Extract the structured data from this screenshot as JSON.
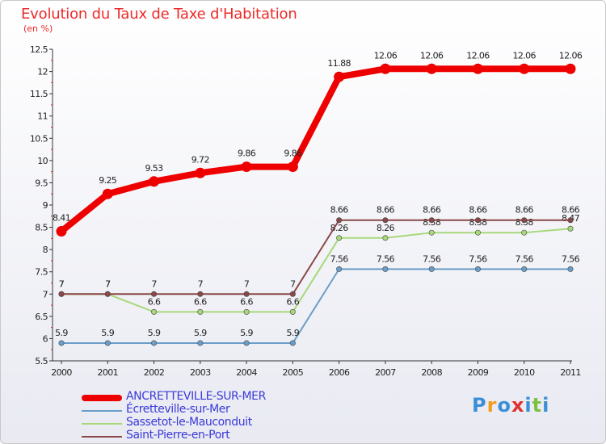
{
  "title": "Evolution du Taux de Taxe d'Habitation",
  "unit": "(en %)",
  "logo": {
    "text": "Proxiti",
    "letters": [
      "P",
      "r",
      "o",
      "x",
      "i",
      "t",
      "i"
    ],
    "colors": [
      "#3b8fd6",
      "#f29b1f",
      "#3b8fd6",
      "#e03030",
      "#3b8fd6",
      "#7cc242",
      "#3b8fd6"
    ]
  },
  "chart_data": {
    "type": "line",
    "title": "Evolution du Taux de Taxe d'Habitation",
    "ylabel": "(en %)",
    "xlabel": "",
    "ylim": [
      5.5,
      12.5
    ],
    "ytick_labels": [
      "5.5",
      "6",
      "6.5",
      "7",
      "7.5",
      "8",
      "8.5",
      "9",
      "9.5",
      "10",
      "10.5",
      "11",
      "11.5",
      "12",
      "12.5"
    ],
    "ytick_values": [
      5.5,
      6,
      6.5,
      7,
      7.5,
      8,
      8.5,
      9,
      9.5,
      10,
      10.5,
      11,
      11.5,
      12,
      12.5
    ],
    "categories": [
      "2000",
      "2001",
      "2002",
      "2003",
      "2004",
      "2005",
      "2006",
      "2007",
      "2008",
      "2009",
      "2010",
      "2011"
    ],
    "series": [
      {
        "name": "ANCRETTEVILLE-SUR-MER",
        "color": "#ee0000",
        "thick": true,
        "values": [
          8.41,
          9.25,
          9.53,
          9.72,
          9.86,
          9.86,
          11.88,
          12.06,
          12.06,
          12.06,
          12.06,
          12.06
        ],
        "labels": [
          "8.41",
          "9.25",
          "9.53",
          "9.72",
          "9.86",
          "9.86",
          "11.88",
          "12.06",
          "12.06",
          "12.06",
          "12.06",
          "12.06"
        ]
      },
      {
        "name": "Écretteville-sur-Mer",
        "color": "#6a9ec9",
        "thick": false,
        "values": [
          5.9,
          5.9,
          5.9,
          5.9,
          5.9,
          5.9,
          7.56,
          7.56,
          7.56,
          7.56,
          7.56,
          7.56
        ],
        "labels": [
          "5.9",
          "5.9",
          "5.9",
          "5.9",
          "5.9",
          "5.9",
          "7.56",
          "7.56",
          "7.56",
          "7.56",
          "7.56",
          "7.56"
        ]
      },
      {
        "name": "Sassetot-le-Mauconduit",
        "color": "#a8d87a",
        "thick": false,
        "values": [
          7.0,
          7.0,
          6.6,
          6.6,
          6.6,
          6.6,
          8.26,
          8.26,
          8.38,
          8.38,
          8.38,
          8.47
        ],
        "labels": [
          "7",
          "7",
          "6.6",
          "6.6",
          "6.6",
          "6.6",
          "8.26",
          "8.26",
          "8.38",
          "8.38",
          "8.38",
          "8.47"
        ]
      },
      {
        "name": "Saint-Pierre-en-Port",
        "color": "#8a4848",
        "thick": false,
        "values": [
          7.0,
          7.0,
          7.0,
          7.0,
          7.0,
          7.0,
          8.66,
          8.66,
          8.66,
          8.66,
          8.66,
          8.66
        ],
        "labels": [
          "7",
          "7",
          "7",
          "7",
          "7",
          "7",
          "8.66",
          "8.66",
          "8.66",
          "8.66",
          "8.66",
          "8.66"
        ]
      }
    ]
  }
}
